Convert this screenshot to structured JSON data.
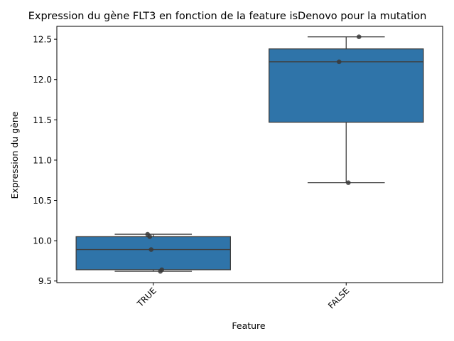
{
  "chart_data": {
    "type": "box",
    "title": "Expression du gène FLT3 en fonction de la feature isDenovo pour la mutation",
    "xlabel": "Feature",
    "ylabel": "Expression du gène",
    "ylim": [
      9.48,
      12.66
    ],
    "yticks": [
      "9.5",
      "10.0",
      "10.5",
      "11.0",
      "11.5",
      "12.0",
      "12.5"
    ],
    "categories": [
      "TRUE",
      "FALSE"
    ],
    "grid": false,
    "box_color": "#2f74a9",
    "point_color": "#3a3a3a",
    "boxes": [
      {
        "category": "TRUE",
        "whisker_low": 9.62,
        "q1": 9.64,
        "median": 9.89,
        "q3": 10.05,
        "whisker_high": 10.08,
        "points": [
          10.08,
          10.05,
          9.89,
          9.64,
          9.62
        ]
      },
      {
        "category": "FALSE",
        "whisker_low": 10.72,
        "q1": 11.47,
        "median": 12.22,
        "q3": 12.38,
        "whisker_high": 12.53,
        "points": [
          12.53,
          12.22,
          10.72
        ]
      }
    ]
  }
}
